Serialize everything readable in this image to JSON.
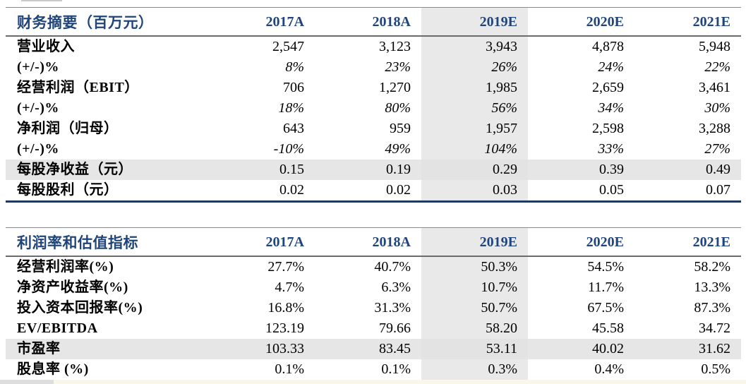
{
  "colors": {
    "header_navy": "#20457c",
    "navy_border": "#1f3864",
    "gray_border": "#6b6b6b",
    "column_highlight": "#e9e9e9",
    "row_highlight": "#e6e6e6"
  },
  "columns": [
    "2017A",
    "2018A",
    "2019E",
    "2020E",
    "2021E"
  ],
  "table1": {
    "title": "财务摘要（百万元）",
    "rows": [
      {
        "label": "营业收入",
        "values": [
          "2,547",
          "3,123",
          "3,943",
          "4,878",
          "5,948"
        ]
      },
      {
        "label": "(+/-)%",
        "values": [
          "8%",
          "23%",
          "26%",
          "24%",
          "22%"
        ],
        "italic": true
      },
      {
        "label": "经营利润（EBIT）",
        "values": [
          "706",
          "1,270",
          "1,985",
          "2,659",
          "3,461"
        ]
      },
      {
        "label": "(+/-)%",
        "values": [
          "18%",
          "80%",
          "56%",
          "34%",
          "30%"
        ],
        "italic": true
      },
      {
        "label": "净利润（归母）",
        "values": [
          "643",
          "959",
          "1,957",
          "2,598",
          "3,288"
        ]
      },
      {
        "label": "(+/-)%",
        "values": [
          "-10%",
          "49%",
          "104%",
          "33%",
          "27%"
        ],
        "italic": true
      },
      {
        "label": "每股净收益（元）",
        "values": [
          "0.15",
          "0.19",
          "0.29",
          "0.39",
          "0.49"
        ],
        "shaded": true
      },
      {
        "label": "每股股利（元）",
        "values": [
          "0.02",
          "0.02",
          "0.03",
          "0.05",
          "0.07"
        ]
      }
    ]
  },
  "table2": {
    "title": "利润率和估值指标",
    "rows": [
      {
        "label": "经营利润率(%)",
        "values": [
          "27.7%",
          "40.7%",
          "50.3%",
          "54.5%",
          "58.2%"
        ]
      },
      {
        "label": "净资产收益率(%)",
        "values": [
          "4.7%",
          "6.3%",
          "10.7%",
          "11.7%",
          "13.3%"
        ]
      },
      {
        "label": "投入资本回报率(%)",
        "values": [
          "16.8%",
          "31.3%",
          "50.7%",
          "67.5%",
          "87.3%"
        ]
      },
      {
        "label": "EV/EBITDA",
        "values": [
          "123.19",
          "79.66",
          "58.20",
          "45.58",
          "34.72"
        ]
      },
      {
        "label": "市盈率",
        "values": [
          "103.33",
          "83.45",
          "53.11",
          "40.02",
          "31.62"
        ],
        "shaded": true
      },
      {
        "label": "股息率 (%)",
        "values": [
          "0.1%",
          "0.1%",
          "0.3%",
          "0.4%",
          "0.5%"
        ]
      }
    ]
  }
}
